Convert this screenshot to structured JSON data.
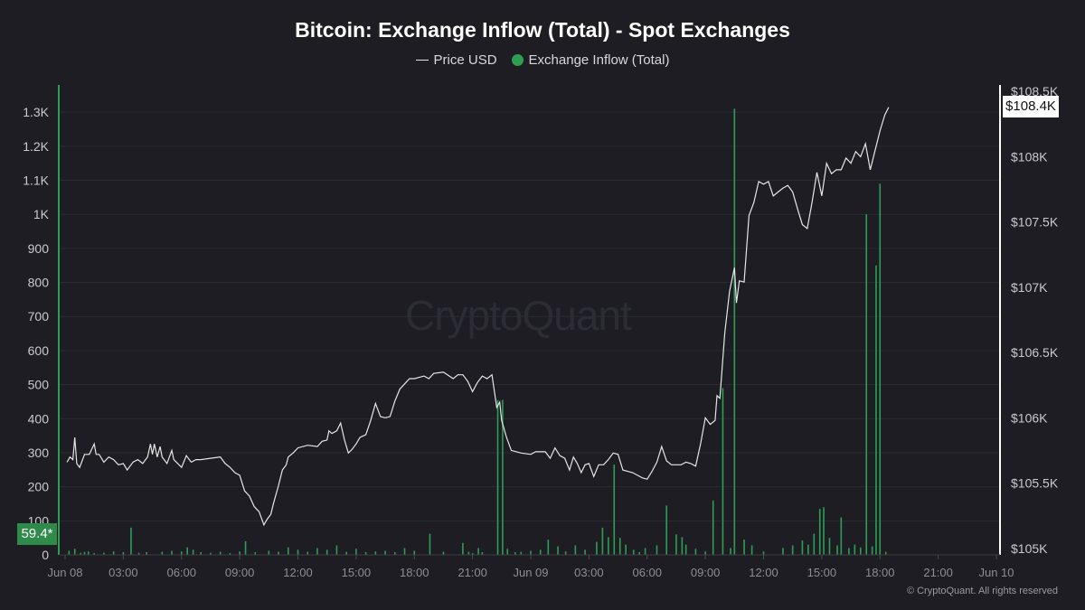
{
  "chart_data": {
    "type": "bar+line",
    "title": "Bitcoin: Exchange Inflow (Total) - Spot Exchanges",
    "legend": [
      {
        "name": "Price USD",
        "color": "#e6e6e6",
        "marker": "line"
      },
      {
        "name": "Exchange Inflow (Total)",
        "color": "#2e9e55",
        "marker": "dot"
      }
    ],
    "legend_position": "top-center",
    "grid": true,
    "x_axis": {
      "ticks": [
        "Jun 08",
        "03:00",
        "06:00",
        "09:00",
        "12:00",
        "15:00",
        "18:00",
        "21:00",
        "Jun 09",
        "03:00",
        "06:00",
        "09:00",
        "12:00",
        "15:00",
        "18:00",
        "21:00",
        "Jun 10"
      ],
      "range_hours": [
        0,
        48
      ]
    },
    "y_left": {
      "ticks": [
        "0",
        "100",
        "200",
        "300",
        "400",
        "500",
        "600",
        "700",
        "800",
        "900",
        "1K",
        "1.1K",
        "1.2K",
        "1.3K"
      ],
      "range": [
        0,
        1380
      ],
      "current_value_label": "59.4*"
    },
    "y_right": {
      "ticks": [
        "$105K",
        "$105.5K",
        "$106K",
        "$106.5K",
        "$107K",
        "$107.5K",
        "$108K",
        "$108.5K"
      ],
      "range": [
        104950,
        108550
      ],
      "current_value_label": "$108.4K"
    },
    "series": [
      {
        "name": "Price USD",
        "axis": "right",
        "color": "#e6e6e6",
        "points": [
          [
            0.1,
            105660
          ],
          [
            0.25,
            105700
          ],
          [
            0.4,
            105680
          ],
          [
            0.5,
            105850
          ],
          [
            0.6,
            105650
          ],
          [
            0.75,
            105620
          ],
          [
            1.0,
            105720
          ],
          [
            1.25,
            105720
          ],
          [
            1.5,
            105800
          ],
          [
            1.6,
            105720
          ],
          [
            1.75,
            105720
          ],
          [
            2.0,
            105660
          ],
          [
            2.25,
            105700
          ],
          [
            2.5,
            105680
          ],
          [
            2.75,
            105640
          ],
          [
            3.0,
            105650
          ],
          [
            3.2,
            105600
          ],
          [
            3.5,
            105660
          ],
          [
            3.75,
            105680
          ],
          [
            4.0,
            105650
          ],
          [
            4.25,
            105700
          ],
          [
            4.4,
            105800
          ],
          [
            4.5,
            105720
          ],
          [
            4.6,
            105800
          ],
          [
            4.75,
            105700
          ],
          [
            4.9,
            105780
          ],
          [
            5.0,
            105700
          ],
          [
            5.25,
            105650
          ],
          [
            5.5,
            105750
          ],
          [
            5.6,
            105680
          ],
          [
            6.0,
            105620
          ],
          [
            6.25,
            105710
          ],
          [
            6.5,
            105660
          ],
          [
            6.75,
            105680
          ],
          [
            7.0,
            105680
          ],
          [
            7.5,
            105690
          ],
          [
            8.0,
            105700
          ],
          [
            8.25,
            105650
          ],
          [
            8.5,
            105620
          ],
          [
            8.75,
            105580
          ],
          [
            9.0,
            105560
          ],
          [
            9.25,
            105440
          ],
          [
            9.5,
            105400
          ],
          [
            9.75,
            105320
          ],
          [
            10.0,
            105280
          ],
          [
            10.25,
            105180
          ],
          [
            10.4,
            105220
          ],
          [
            10.6,
            105260
          ],
          [
            10.75,
            105350
          ],
          [
            11.0,
            105480
          ],
          [
            11.2,
            105600
          ],
          [
            11.4,
            105640
          ],
          [
            11.5,
            105700
          ],
          [
            11.75,
            105730
          ],
          [
            12.0,
            105770
          ],
          [
            12.5,
            105790
          ],
          [
            13.0,
            105780
          ],
          [
            13.25,
            105820
          ],
          [
            13.5,
            105830
          ],
          [
            13.6,
            105900
          ],
          [
            13.75,
            105880
          ],
          [
            14.0,
            105900
          ],
          [
            14.2,
            105960
          ],
          [
            14.4,
            105830
          ],
          [
            14.6,
            105730
          ],
          [
            14.8,
            105760
          ],
          [
            15.0,
            105800
          ],
          [
            15.2,
            105850
          ],
          [
            15.5,
            105870
          ],
          [
            15.75,
            105980
          ],
          [
            16.0,
            106110
          ],
          [
            16.25,
            106010
          ],
          [
            16.5,
            106000
          ],
          [
            16.75,
            106010
          ],
          [
            17.0,
            106130
          ],
          [
            17.25,
            106220
          ],
          [
            17.5,
            106260
          ],
          [
            17.75,
            106300
          ],
          [
            18.0,
            106300
          ],
          [
            18.5,
            106320
          ],
          [
            18.75,
            106300
          ],
          [
            19.0,
            106340
          ],
          [
            19.5,
            106350
          ],
          [
            20.0,
            106300
          ],
          [
            20.25,
            106330
          ],
          [
            20.5,
            106330
          ],
          [
            20.75,
            106280
          ],
          [
            21.0,
            106200
          ],
          [
            21.25,
            106270
          ],
          [
            21.5,
            106320
          ],
          [
            21.75,
            106300
          ],
          [
            22.0,
            106330
          ],
          [
            22.25,
            106080
          ],
          [
            22.4,
            106120
          ],
          [
            22.5,
            105980
          ],
          [
            22.75,
            105850
          ],
          [
            23.0,
            105750
          ],
          [
            23.5,
            105730
          ],
          [
            24.0,
            105720
          ],
          [
            24.25,
            105740
          ],
          [
            24.5,
            105740
          ],
          [
            24.75,
            105740
          ],
          [
            25.0,
            105690
          ],
          [
            25.25,
            105770
          ],
          [
            25.5,
            105710
          ],
          [
            25.75,
            105690
          ],
          [
            26.0,
            105600
          ],
          [
            26.2,
            105700
          ],
          [
            26.4,
            105650
          ],
          [
            26.6,
            105580
          ],
          [
            26.8,
            105640
          ],
          [
            27.0,
            105650
          ],
          [
            27.25,
            105550
          ],
          [
            27.5,
            105640
          ],
          [
            27.75,
            105640
          ],
          [
            28.0,
            105680
          ],
          [
            28.25,
            105730
          ],
          [
            28.5,
            105720
          ],
          [
            28.75,
            105600
          ],
          [
            29.0,
            105590
          ],
          [
            29.25,
            105580
          ],
          [
            29.5,
            105560
          ],
          [
            29.75,
            105540
          ],
          [
            30.0,
            105530
          ],
          [
            30.25,
            105590
          ],
          [
            30.5,
            105660
          ],
          [
            30.75,
            105780
          ],
          [
            31.0,
            105670
          ],
          [
            31.25,
            105640
          ],
          [
            31.5,
            105640
          ],
          [
            31.75,
            105640
          ],
          [
            32.0,
            105660
          ],
          [
            32.25,
            105650
          ],
          [
            32.5,
            105630
          ],
          [
            32.75,
            105800
          ],
          [
            33.0,
            106000
          ],
          [
            33.25,
            105950
          ],
          [
            33.5,
            105980
          ],
          [
            33.6,
            106170
          ],
          [
            33.75,
            106150
          ],
          [
            34.0,
            106650
          ],
          [
            34.25,
            106970
          ],
          [
            34.5,
            107150
          ],
          [
            34.6,
            106880
          ],
          [
            34.75,
            107050
          ],
          [
            35.0,
            107040
          ],
          [
            35.25,
            107550
          ],
          [
            35.5,
            107650
          ],
          [
            35.75,
            107810
          ],
          [
            36.0,
            107790
          ],
          [
            36.25,
            107810
          ],
          [
            36.5,
            107700
          ],
          [
            36.75,
            107730
          ],
          [
            37.0,
            107760
          ],
          [
            37.25,
            107780
          ],
          [
            37.5,
            107730
          ],
          [
            37.75,
            107600
          ],
          [
            38.0,
            107480
          ],
          [
            38.25,
            107450
          ],
          [
            38.5,
            107650
          ],
          [
            38.75,
            107880
          ],
          [
            39.0,
            107700
          ],
          [
            39.25,
            107950
          ],
          [
            39.5,
            107870
          ],
          [
            39.75,
            107900
          ],
          [
            40.0,
            107900
          ],
          [
            40.25,
            107990
          ],
          [
            40.5,
            107950
          ],
          [
            40.75,
            108040
          ],
          [
            41.0,
            108000
          ],
          [
            41.25,
            108100
          ],
          [
            41.5,
            107900
          ],
          [
            41.75,
            108050
          ],
          [
            42.0,
            108200
          ],
          [
            42.25,
            108320
          ],
          [
            42.45,
            108380
          ]
        ]
      },
      {
        "name": "Exchange Inflow (Total)",
        "axis": "left",
        "color": "#2e9e55",
        "points": [
          [
            0.2,
            12
          ],
          [
            0.5,
            18
          ],
          [
            0.8,
            6
          ],
          [
            1.0,
            9
          ],
          [
            1.2,
            10
          ],
          [
            1.5,
            5
          ],
          [
            2.0,
            6
          ],
          [
            2.5,
            10
          ],
          [
            3.0,
            8
          ],
          [
            3.4,
            80
          ],
          [
            3.8,
            6
          ],
          [
            4.2,
            8
          ],
          [
            5.0,
            9
          ],
          [
            5.5,
            12
          ],
          [
            6.0,
            10
          ],
          [
            6.3,
            22
          ],
          [
            6.6,
            15
          ],
          [
            7.0,
            8
          ],
          [
            7.5,
            6
          ],
          [
            8.0,
            9
          ],
          [
            8.5,
            5
          ],
          [
            9.0,
            10
          ],
          [
            9.3,
            40
          ],
          [
            9.8,
            8
          ],
          [
            10.5,
            12
          ],
          [
            11.0,
            9
          ],
          [
            11.5,
            22
          ],
          [
            12.0,
            15
          ],
          [
            12.5,
            9
          ],
          [
            13.0,
            20
          ],
          [
            13.5,
            15
          ],
          [
            14.0,
            28
          ],
          [
            14.5,
            9
          ],
          [
            15.0,
            18
          ],
          [
            15.5,
            8
          ],
          [
            16.0,
            10
          ],
          [
            16.5,
            12
          ],
          [
            17.0,
            8
          ],
          [
            17.5,
            20
          ],
          [
            18.0,
            12
          ],
          [
            18.8,
            62
          ],
          [
            19.5,
            9
          ],
          [
            20.5,
            35
          ],
          [
            20.8,
            9
          ],
          [
            21.0,
            5
          ],
          [
            21.3,
            20
          ],
          [
            21.5,
            8
          ],
          [
            22.3,
            455
          ],
          [
            22.55,
            455
          ],
          [
            22.8,
            18
          ],
          [
            23.2,
            8
          ],
          [
            23.5,
            9
          ],
          [
            24.0,
            12
          ],
          [
            24.5,
            15
          ],
          [
            24.9,
            45
          ],
          [
            25.4,
            25
          ],
          [
            25.8,
            10
          ],
          [
            26.3,
            28
          ],
          [
            26.8,
            15
          ],
          [
            27.4,
            38
          ],
          [
            27.7,
            80
          ],
          [
            28.0,
            52
          ],
          [
            28.3,
            265
          ],
          [
            28.6,
            50
          ],
          [
            28.9,
            30
          ],
          [
            29.3,
            15
          ],
          [
            29.6,
            8
          ],
          [
            29.9,
            20
          ],
          [
            30.5,
            28
          ],
          [
            31.0,
            145
          ],
          [
            31.5,
            60
          ],
          [
            31.8,
            52
          ],
          [
            32.0,
            30
          ],
          [
            32.5,
            18
          ],
          [
            33.0,
            10
          ],
          [
            33.4,
            160
          ],
          [
            33.9,
            490
          ],
          [
            34.3,
            20
          ],
          [
            34.5,
            1310
          ],
          [
            35.0,
            45
          ],
          [
            35.4,
            28
          ],
          [
            36.0,
            10
          ],
          [
            37.0,
            20
          ],
          [
            37.5,
            28
          ],
          [
            38.0,
            42
          ],
          [
            38.3,
            30
          ],
          [
            38.6,
            62
          ],
          [
            38.9,
            135
          ],
          [
            39.1,
            140
          ],
          [
            39.4,
            50
          ],
          [
            39.8,
            28
          ],
          [
            40.0,
            110
          ],
          [
            40.4,
            20
          ],
          [
            40.7,
            30
          ],
          [
            41.0,
            22
          ],
          [
            41.3,
            1000
          ],
          [
            41.6,
            25
          ],
          [
            41.8,
            850
          ],
          [
            42.0,
            1090
          ],
          [
            42.3,
            9
          ]
        ]
      }
    ],
    "watermark": "CryptoQuant",
    "copyright": "© CryptoQuant. All rights reserved"
  }
}
